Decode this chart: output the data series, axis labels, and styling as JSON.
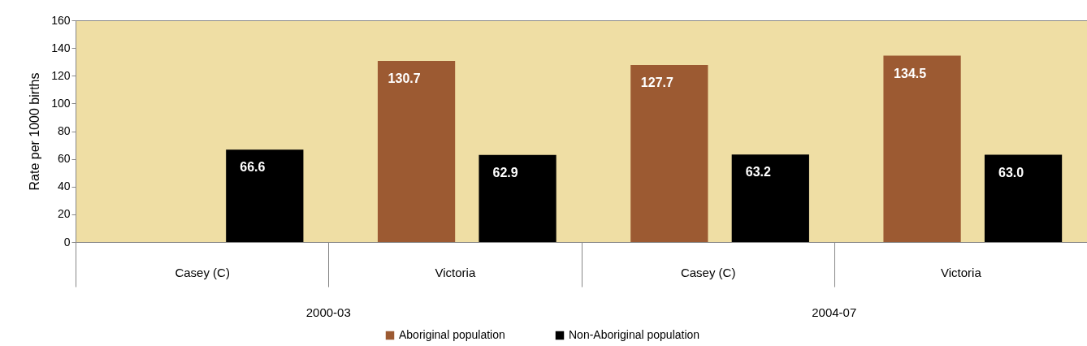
{
  "chart_data": {
    "type": "bar",
    "ylabel": "Rate per 1000 births",
    "categories": [
      "Casey (C)",
      "Victoria",
      "Casey (C)",
      "Victoria"
    ],
    "series": [
      {
        "name": "Aboriginal population",
        "color": "#9c5a32",
        "values": [
          null,
          130.7,
          127.7,
          134.5
        ],
        "value_labels": [
          null,
          "130.7",
          "127.7",
          "134.5"
        ]
      },
      {
        "name": "Non-Aboriginal population",
        "color": "#000000",
        "values": [
          66.6,
          62.9,
          63.2,
          63.0
        ],
        "value_labels": [
          "66.6",
          "62.9",
          "63.2",
          "63.0"
        ]
      }
    ],
    "ylim": [
      0,
      160
    ],
    "yticks": [
      0,
      20,
      40,
      60,
      80,
      100,
      120,
      140,
      160
    ],
    "grid": false,
    "legend": "bottom",
    "annotations": [
      "2000-03",
      "2004-07"
    ]
  }
}
